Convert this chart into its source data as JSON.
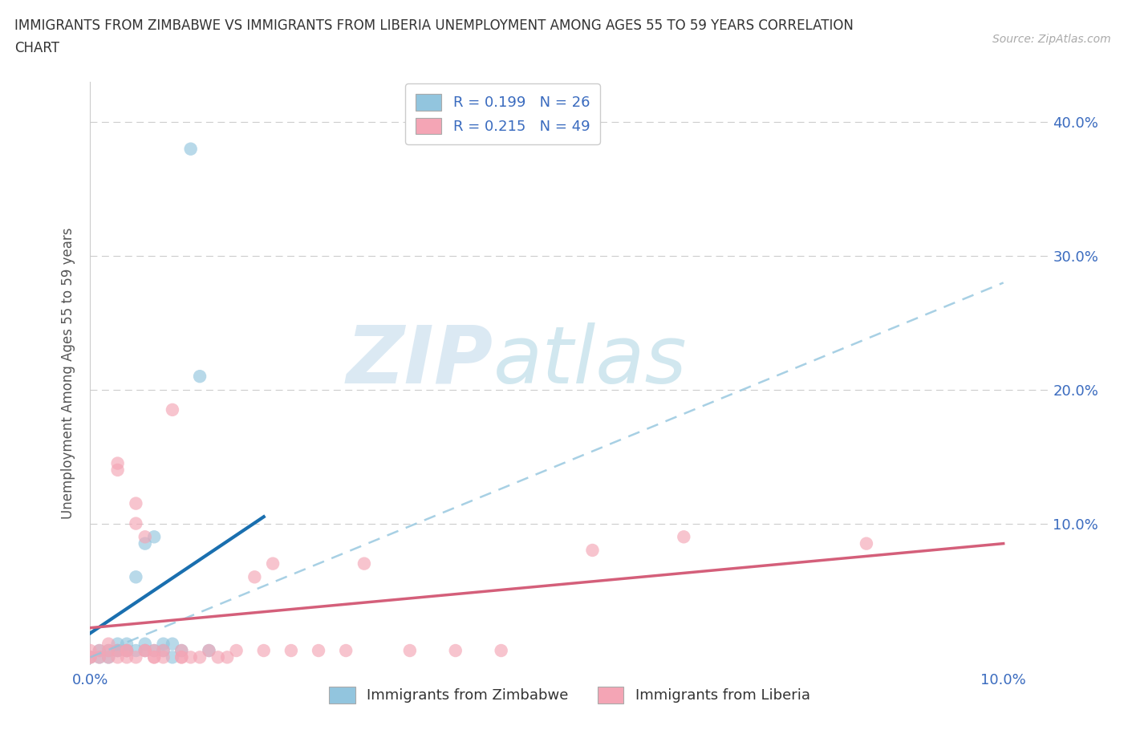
{
  "title_line1": "IMMIGRANTS FROM ZIMBABWE VS IMMIGRANTS FROM LIBERIA UNEMPLOYMENT AMONG AGES 55 TO 59 YEARS CORRELATION",
  "title_line2": "CHART",
  "source": "Source: ZipAtlas.com",
  "ylabel": "Unemployment Among Ages 55 to 59 years",
  "xlim": [
    0.0,
    0.105
  ],
  "ylim": [
    -0.005,
    0.43
  ],
  "xtick_positions": [
    0.0,
    0.02,
    0.04,
    0.06,
    0.08,
    0.1
  ],
  "xtick_labels": [
    "0.0%",
    "",
    "",
    "",
    "",
    "10.0%"
  ],
  "ytick_positions": [
    0.0,
    0.1,
    0.2,
    0.3,
    0.4
  ],
  "ytick_labels_right": [
    "",
    "10.0%",
    "20.0%",
    "30.0%",
    "40.0%"
  ],
  "legend_R_zimbabwe": "0.199",
  "legend_N_zimbabwe": "26",
  "legend_R_liberia": "0.215",
  "legend_N_liberia": "49",
  "zimbabwe_color": "#92C5DE",
  "liberia_color": "#F4A5B5",
  "trendline_zimbabwe_color": "#1a6faf",
  "trendline_liberia_color": "#d45f7a",
  "dashed_line_color": "#92C5DE",
  "watermark_part1": "ZIP",
  "watermark_part2": "atlas",
  "background_color": "#ffffff",
  "grid_color": "#cccccc",
  "zimbabwe_scatter": [
    [
      0.0,
      0.0
    ],
    [
      0.001,
      0.0
    ],
    [
      0.001,
      0.005
    ],
    [
      0.002,
      0.0
    ],
    [
      0.002,
      0.005
    ],
    [
      0.003,
      0.005
    ],
    [
      0.003,
      0.01
    ],
    [
      0.003,
      0.005
    ],
    [
      0.004,
      0.005
    ],
    [
      0.004,
      0.01
    ],
    [
      0.004,
      0.005
    ],
    [
      0.005,
      0.06
    ],
    [
      0.005,
      0.005
    ],
    [
      0.006,
      0.085
    ],
    [
      0.006,
      0.01
    ],
    [
      0.006,
      0.005
    ],
    [
      0.007,
      0.005
    ],
    [
      0.007,
      0.09
    ],
    [
      0.008,
      0.01
    ],
    [
      0.008,
      0.005
    ],
    [
      0.009,
      0.01
    ],
    [
      0.009,
      0.0
    ],
    [
      0.01,
      0.005
    ],
    [
      0.011,
      0.38
    ],
    [
      0.012,
      0.21
    ],
    [
      0.013,
      0.005
    ]
  ],
  "liberia_scatter": [
    [
      0.0,
      0.005
    ],
    [
      0.0,
      0.0
    ],
    [
      0.0,
      0.0
    ],
    [
      0.001,
      0.005
    ],
    [
      0.001,
      0.0
    ],
    [
      0.002,
      0.005
    ],
    [
      0.002,
      0.0
    ],
    [
      0.002,
      0.01
    ],
    [
      0.003,
      0.0
    ],
    [
      0.003,
      0.005
    ],
    [
      0.003,
      0.14
    ],
    [
      0.003,
      0.145
    ],
    [
      0.004,
      0.0
    ],
    [
      0.004,
      0.005
    ],
    [
      0.004,
      0.005
    ],
    [
      0.005,
      0.0
    ],
    [
      0.005,
      0.1
    ],
    [
      0.005,
      0.115
    ],
    [
      0.006,
      0.005
    ],
    [
      0.006,
      0.09
    ],
    [
      0.006,
      0.005
    ],
    [
      0.007,
      0.005
    ],
    [
      0.007,
      0.0
    ],
    [
      0.007,
      0.0
    ],
    [
      0.008,
      0.005
    ],
    [
      0.008,
      0.0
    ],
    [
      0.009,
      0.185
    ],
    [
      0.01,
      0.005
    ],
    [
      0.01,
      0.0
    ],
    [
      0.01,
      0.0
    ],
    [
      0.011,
      0.0
    ],
    [
      0.012,
      0.0
    ],
    [
      0.013,
      0.005
    ],
    [
      0.014,
      0.0
    ],
    [
      0.015,
      0.0
    ],
    [
      0.016,
      0.005
    ],
    [
      0.018,
      0.06
    ],
    [
      0.019,
      0.005
    ],
    [
      0.02,
      0.07
    ],
    [
      0.022,
      0.005
    ],
    [
      0.025,
      0.005
    ],
    [
      0.028,
      0.005
    ],
    [
      0.03,
      0.07
    ],
    [
      0.035,
      0.005
    ],
    [
      0.04,
      0.005
    ],
    [
      0.045,
      0.005
    ],
    [
      0.055,
      0.08
    ],
    [
      0.065,
      0.09
    ],
    [
      0.085,
      0.085
    ]
  ],
  "dashed_line_x": [
    0.0,
    0.1
  ],
  "dashed_line_y": [
    0.0,
    0.28
  ]
}
